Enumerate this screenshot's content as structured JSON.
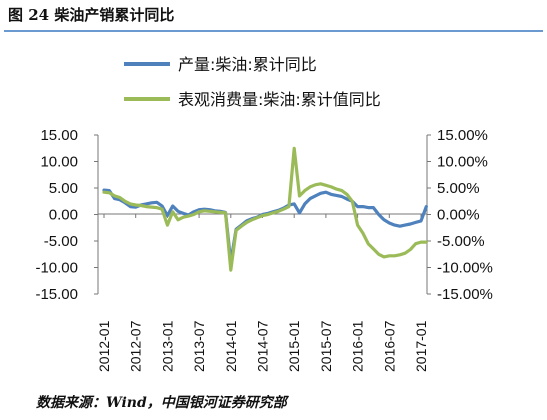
{
  "figure": {
    "title": "图 24 柴油产销累计同比",
    "source": "数据来源：Wind，中国银河证券研究部"
  },
  "chart_data": {
    "type": "line",
    "legend_position": "top",
    "grid": false,
    "left_axis": {
      "range": [
        -15,
        15
      ],
      "ticks": [
        "15.00",
        "10.00",
        "5.00",
        "0.00",
        "-5.00",
        "-10.00",
        "-15.00"
      ]
    },
    "right_axis": {
      "range": [
        -15,
        15
      ],
      "ticks": [
        "15.00%",
        "10.00%",
        "5.00%",
        "0.00%",
        "-5.00%",
        "-10.00%",
        "-15.00%"
      ]
    },
    "x_ticks": [
      "2012-01",
      "2012-07",
      "2013-01",
      "2013-07",
      "2014-01",
      "2014-07",
      "2015-01",
      "2015-07",
      "2016-01",
      "2016-07",
      "2017-01"
    ],
    "series": [
      {
        "name": "产量:柴油:累计同比",
        "color": "#4f81bd",
        "axis": "left",
        "points": [
          [
            "2012-01",
            4.6
          ],
          [
            "2012-02",
            4.5
          ],
          [
            "2012-03",
            3.0
          ],
          [
            "2012-04",
            2.8
          ],
          [
            "2012-05",
            2.2
          ],
          [
            "2012-06",
            1.5
          ],
          [
            "2012-07",
            1.4
          ],
          [
            "2012-08",
            1.8
          ],
          [
            "2012-09",
            2.0
          ],
          [
            "2012-10",
            2.2
          ],
          [
            "2012-11",
            2.3
          ],
          [
            "2012-12",
            1.6
          ],
          [
            "2013-01",
            -0.2
          ],
          [
            "2013-02",
            1.6
          ],
          [
            "2013-03",
            0.6
          ],
          [
            "2013-04",
            0.2
          ],
          [
            "2013-05",
            -0.1
          ],
          [
            "2013-06",
            0.5
          ],
          [
            "2013-07",
            0.9
          ],
          [
            "2013-08",
            1.0
          ],
          [
            "2013-09",
            0.9
          ],
          [
            "2013-10",
            0.7
          ],
          [
            "2013-11",
            0.6
          ],
          [
            "2013-12",
            0.4
          ],
          [
            "2014-01",
            -9.0
          ],
          [
            "2014-02",
            -2.8
          ],
          [
            "2014-03",
            -2.0
          ],
          [
            "2014-04",
            -1.2
          ],
          [
            "2014-05",
            -0.8
          ],
          [
            "2014-06",
            -0.5
          ],
          [
            "2014-07",
            0.0
          ],
          [
            "2014-08",
            0.2
          ],
          [
            "2014-09",
            0.5
          ],
          [
            "2014-10",
            0.8
          ],
          [
            "2014-11",
            1.2
          ],
          [
            "2014-12",
            1.8
          ],
          [
            "2015-01",
            2.0
          ],
          [
            "2015-02",
            0.3
          ],
          [
            "2015-03",
            2.0
          ],
          [
            "2015-04",
            3.0
          ],
          [
            "2015-05",
            3.5
          ],
          [
            "2015-06",
            4.0
          ],
          [
            "2015-07",
            4.2
          ],
          [
            "2015-08",
            3.8
          ],
          [
            "2015-09",
            3.6
          ],
          [
            "2015-10",
            3.4
          ],
          [
            "2015-11",
            2.9
          ],
          [
            "2015-12",
            2.5
          ],
          [
            "2016-01",
            1.5
          ],
          [
            "2016-02",
            1.5
          ],
          [
            "2016-03",
            1.3
          ],
          [
            "2016-04",
            1.3
          ],
          [
            "2016-05",
            0.0
          ],
          [
            "2016-06",
            -1.0
          ],
          [
            "2016-07",
            -1.6
          ],
          [
            "2016-08",
            -2.0
          ],
          [
            "2016-09",
            -2.2
          ],
          [
            "2016-10",
            -2.0
          ],
          [
            "2016-11",
            -1.8
          ],
          [
            "2016-12",
            -1.5
          ],
          [
            "2017-01",
            -1.2
          ],
          [
            "2017-02",
            1.5
          ]
        ]
      },
      {
        "name": "表观消费量:柴油:累计值同比",
        "color": "#9bbb59",
        "axis": "right",
        "points": [
          [
            "2012-01",
            4.2
          ],
          [
            "2012-02",
            4.1
          ],
          [
            "2012-03",
            3.5
          ],
          [
            "2012-04",
            3.2
          ],
          [
            "2012-05",
            2.5
          ],
          [
            "2012-06",
            2.0
          ],
          [
            "2012-07",
            1.8
          ],
          [
            "2012-08",
            1.7
          ],
          [
            "2012-09",
            1.5
          ],
          [
            "2012-10",
            1.4
          ],
          [
            "2012-11",
            1.3
          ],
          [
            "2012-12",
            1.0
          ],
          [
            "2013-01",
            -2.0
          ],
          [
            "2013-02",
            0.5
          ],
          [
            "2013-03",
            -1.0
          ],
          [
            "2013-04",
            -0.5
          ],
          [
            "2013-05",
            -0.3
          ],
          [
            "2013-06",
            0.0
          ],
          [
            "2013-07",
            0.5
          ],
          [
            "2013-08",
            0.7
          ],
          [
            "2013-09",
            0.6
          ],
          [
            "2013-10",
            0.5
          ],
          [
            "2013-11",
            0.4
          ],
          [
            "2013-12",
            0.3
          ],
          [
            "2014-01",
            -10.5
          ],
          [
            "2014-02",
            -3.0
          ],
          [
            "2014-03",
            -2.2
          ],
          [
            "2014-04",
            -1.5
          ],
          [
            "2014-05",
            -1.0
          ],
          [
            "2014-06",
            -0.6
          ],
          [
            "2014-07",
            -0.2
          ],
          [
            "2014-08",
            0.0
          ],
          [
            "2014-09",
            0.3
          ],
          [
            "2014-10",
            0.6
          ],
          [
            "2014-11",
            1.0
          ],
          [
            "2014-12",
            1.5
          ],
          [
            "2015-01",
            12.5
          ],
          [
            "2015-02",
            3.5
          ],
          [
            "2015-03",
            4.5
          ],
          [
            "2015-04",
            5.2
          ],
          [
            "2015-05",
            5.6
          ],
          [
            "2015-06",
            5.8
          ],
          [
            "2015-07",
            5.5
          ],
          [
            "2015-08",
            5.2
          ],
          [
            "2015-09",
            4.8
          ],
          [
            "2015-10",
            4.5
          ],
          [
            "2015-11",
            3.8
          ],
          [
            "2015-12",
            2.5
          ],
          [
            "2016-01",
            -2.0
          ],
          [
            "2016-02",
            -3.5
          ],
          [
            "2016-03",
            -5.5
          ],
          [
            "2016-04",
            -6.5
          ],
          [
            "2016-05",
            -7.5
          ],
          [
            "2016-06",
            -8.0
          ],
          [
            "2016-07",
            -7.8
          ],
          [
            "2016-08",
            -7.8
          ],
          [
            "2016-09",
            -7.6
          ],
          [
            "2016-10",
            -7.3
          ],
          [
            "2016-11",
            -6.6
          ],
          [
            "2016-12",
            -5.5
          ],
          [
            "2017-01",
            -5.2
          ],
          [
            "2017-02",
            -5.2
          ]
        ]
      }
    ]
  }
}
